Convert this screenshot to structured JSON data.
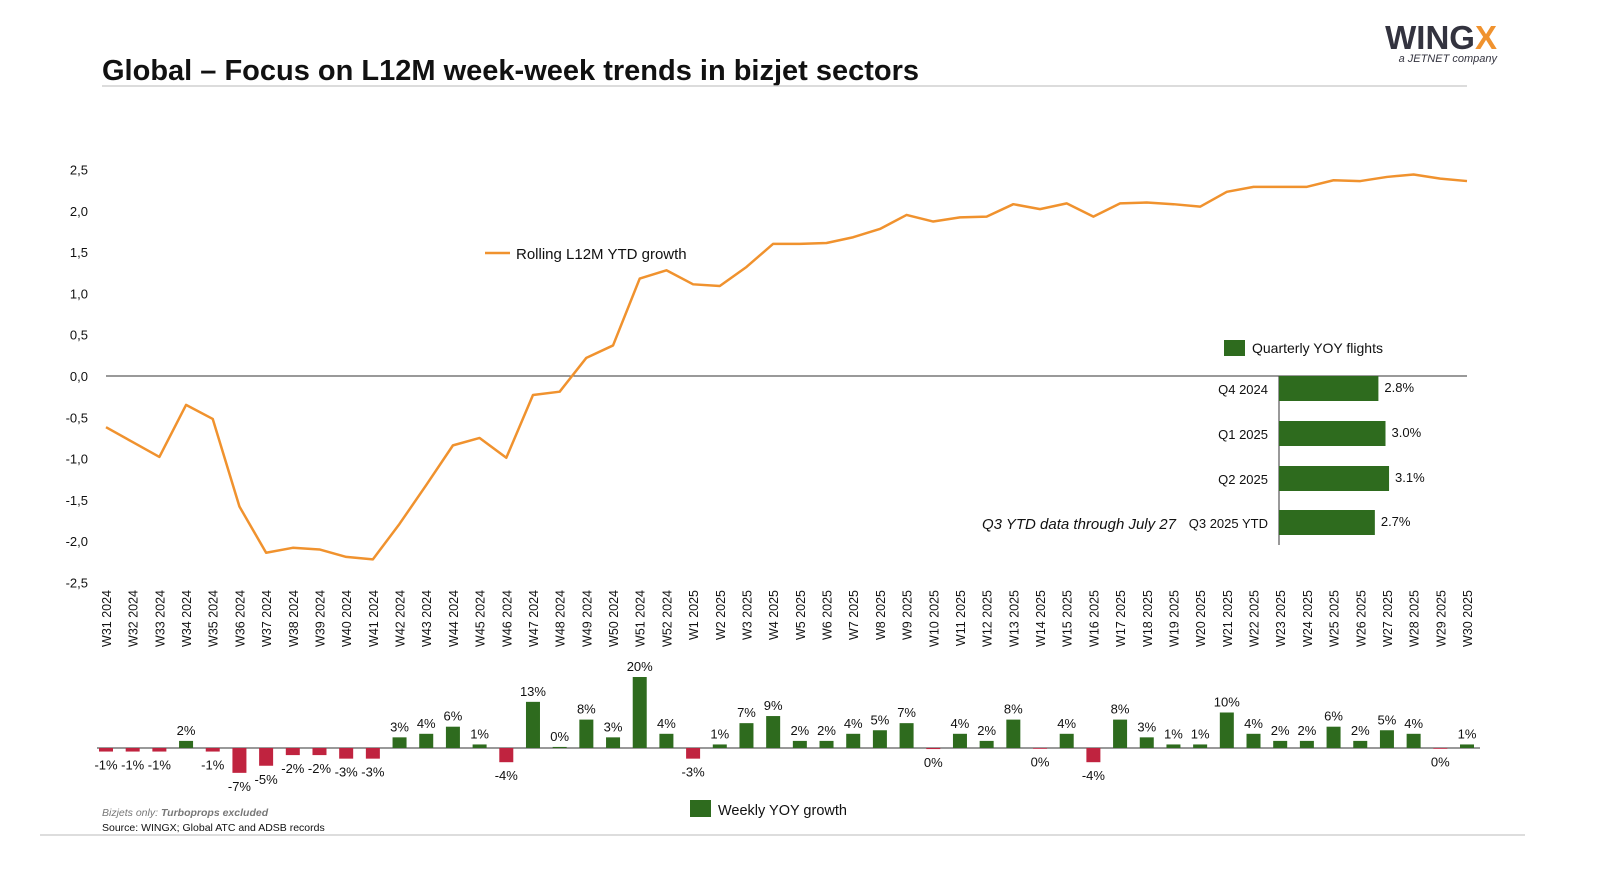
{
  "header": {
    "title": "Global – Focus on L12M week-week trends in bizjet sectors",
    "logo": {
      "brand_main": "WING",
      "brand_accent": "X",
      "tagline": "a JETNET company"
    }
  },
  "footnotes": {
    "line1_prefix": "Bizjets only: ",
    "line1_emphasis": "Turboprops excluded",
    "line2": "Source: WINGX; Global ATC and ADSB records"
  },
  "colors": {
    "line": "#F0922E",
    "positive": "#2E6B1E",
    "negative": "#C0233F",
    "logo_dark": "#33333F",
    "logo_accent": "#F0922E"
  },
  "chart_data": [
    {
      "type": "line",
      "series": [
        {
          "name": "Rolling L12M YTD growth",
          "values": [
            -0.62,
            -0.8,
            -0.98,
            -0.35,
            -0.52,
            -1.58,
            -2.14,
            -2.08,
            -2.1,
            -2.19,
            -2.22,
            -1.79,
            -1.32,
            -0.84,
            -0.75,
            -0.99,
            -0.23,
            -0.19,
            0.22,
            0.37,
            1.18,
            1.28,
            1.11,
            1.09,
            1.32,
            1.6,
            1.6,
            1.61,
            1.68,
            1.78,
            1.95,
            1.87,
            1.92,
            1.93,
            2.08,
            2.02,
            2.09,
            1.93,
            2.09,
            2.1,
            2.08,
            2.05,
            2.23,
            2.29,
            2.29,
            2.29,
            2.37,
            2.36,
            2.41,
            2.44,
            2.39,
            2.36
          ]
        }
      ],
      "categories": [
        "W31 2024",
        "W32 2024",
        "W33 2024",
        "W34 2024",
        "W35 2024",
        "W36 2024",
        "W37 2024",
        "W38 2024",
        "W39 2024",
        "W40 2024",
        "W41 2024",
        "W42 2024",
        "W43 2024",
        "W44 2024",
        "W45 2024",
        "W46 2024",
        "W47 2024",
        "W48 2024",
        "W49 2024",
        "W50 2024",
        "W51 2024",
        "W52 2024",
        "W1 2025",
        "W2 2025",
        "W3 2025",
        "W4 2025",
        "W5 2025",
        "W6 2025",
        "W7 2025",
        "W8 2025",
        "W9 2025",
        "W10 2025",
        "W11 2025",
        "W12 2025",
        "W13 2025",
        "W14 2025",
        "W15 2025",
        "W16 2025",
        "W17 2025",
        "W18 2025",
        "W19 2025",
        "W20 2025",
        "W21 2025",
        "W22 2025",
        "W23 2025",
        "W24 2025",
        "W25 2025",
        "W26 2025",
        "W27 2025",
        "W28 2025",
        "W29 2025",
        "W30 2025"
      ],
      "ylim": [
        -2.5,
        2.5
      ],
      "yticks": [
        2.5,
        2.0,
        1.5,
        1.0,
        0.5,
        0.0,
        -0.5,
        -1.0,
        -1.5,
        -2.0,
        -2.5
      ],
      "ytick_labels": [
        "2,5",
        "2,0",
        "1,5",
        "1,0",
        "0,5",
        "0,0",
        "-0,5",
        "-1,0",
        "-1,5",
        "-2,0",
        "-2,5"
      ],
      "legend": "top-center",
      "grid": false
    },
    {
      "type": "bar",
      "series": [
        {
          "name": "Weekly YOY growth",
          "values": [
            -1,
            -1,
            -1,
            2,
            -1,
            -7,
            -5,
            -2,
            -2,
            -3,
            -3,
            3,
            4,
            6,
            1,
            -4,
            13,
            0.3,
            8,
            3,
            20,
            4,
            -3,
            1,
            7,
            9,
            2,
            2,
            4,
            5,
            7,
            -0.3,
            4,
            2,
            8,
            -0.1,
            4,
            -4,
            8,
            3,
            1,
            1,
            10,
            4,
            2,
            2,
            6,
            2,
            5,
            4,
            -0.1,
            1
          ],
          "labels": [
            "-1%",
            "-1%",
            "-1%",
            "2%",
            "-1%",
            "-7%",
            "-5%",
            "-2%",
            "-2%",
            "-3%",
            "-3%",
            "3%",
            "4%",
            "6%",
            "1%",
            "-4%",
            "13%",
            "0%",
            "8%",
            "3%",
            "20%",
            "4%",
            "-3%",
            "1%",
            "7%",
            "9%",
            "2%",
            "2%",
            "4%",
            "5%",
            "7%",
            "0%",
            "4%",
            "2%",
            "8%",
            "0%",
            "4%",
            "-4%",
            "8%",
            "3%",
            "1%",
            "1%",
            "10%",
            "4%",
            "2%",
            "2%",
            "6%",
            "2%",
            "5%",
            "4%",
            "0%",
            "1%"
          ]
        }
      ],
      "unit": "%",
      "legend": "bottom-center"
    },
    {
      "type": "bar",
      "orientation": "horizontal",
      "series": [
        {
          "name": "Quarterly YOY flights",
          "values": [
            2.8,
            3.0,
            3.1,
            2.7
          ],
          "labels": [
            "2.8%",
            "3.0%",
            "3.1%",
            "2.7%"
          ]
        }
      ],
      "categories": [
        "Q4 2024",
        "Q1 2025",
        "Q2 2025",
        "Q3 2025 YTD"
      ],
      "annotation": "Q3 YTD data through July 27",
      "legend": "top"
    }
  ]
}
